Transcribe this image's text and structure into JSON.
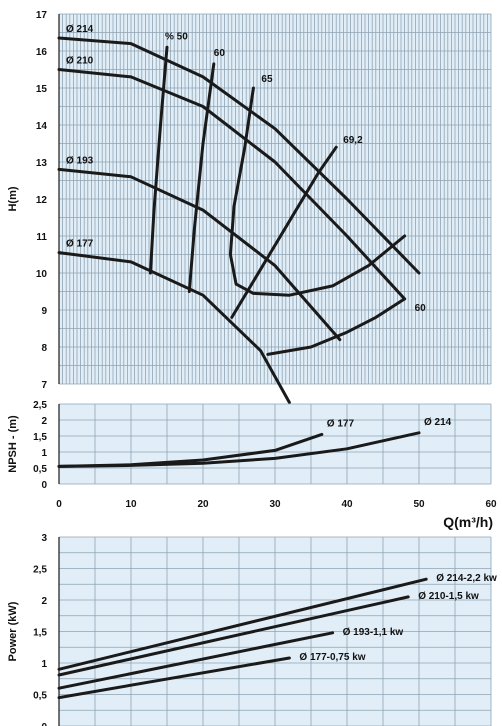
{
  "chart_data": [
    {
      "type": "line",
      "name": "head",
      "xlim": [
        0,
        60
      ],
      "ylim": [
        7,
        17
      ],
      "ylabel": "H(m)",
      "xlabel": "",
      "y_ticks": [
        "7",
        "8",
        "9",
        "10",
        "11",
        "12",
        "13",
        "14",
        "15",
        "16",
        "17"
      ],
      "grid": true,
      "series": [
        {
          "name": "Ø 214",
          "x": [
            0,
            10,
            20,
            30,
            40,
            50
          ],
          "y": [
            16.35,
            16.2,
            15.3,
            13.9,
            12.0,
            10.0
          ]
        },
        {
          "name": "Ø 210",
          "x": [
            0,
            10,
            20,
            30,
            40,
            48
          ],
          "y": [
            15.5,
            15.3,
            14.5,
            13.0,
            11.0,
            9.3
          ]
        },
        {
          "name": "Ø 193",
          "x": [
            0,
            10,
            20,
            30,
            39
          ],
          "y": [
            12.8,
            12.6,
            11.7,
            10.2,
            8.2
          ]
        },
        {
          "name": "Ø 177",
          "x": [
            0,
            10,
            20,
            28,
            32
          ],
          "y": [
            10.55,
            10.3,
            9.4,
            7.9,
            6.5
          ]
        }
      ],
      "efficiency_curves": [
        {
          "label": "% 50",
          "x": [
            15,
            14.1,
            13.2,
            12.7
          ],
          "y": [
            16.1,
            14.0,
            11.7,
            10.0
          ]
        },
        {
          "label": "60",
          "x": [
            21.5,
            20.0,
            18.8,
            18.1
          ],
          "y": [
            15.65,
            13.5,
            11.2,
            9.5
          ]
        },
        {
          "label": "65",
          "x": [
            27,
            25.8,
            24.3,
            23.8,
            24.6,
            27.0,
            32.0,
            38.0,
            43.0,
            48.0
          ],
          "y": [
            15.0,
            13.4,
            11.8,
            10.5,
            9.7,
            9.45,
            9.4,
            9.65,
            10.2,
            11.0
          ]
        },
        {
          "label": "69,2",
          "x": [
            24,
            28,
            32,
            36,
            38.5
          ],
          "y": [
            8.8,
            10.1,
            11.4,
            12.7,
            13.4
          ]
        },
        {
          "label": "60",
          "x": [
            29,
            35,
            40,
            44,
            48
          ],
          "y": [
            7.8,
            8.0,
            8.4,
            8.8,
            9.3
          ]
        }
      ]
    },
    {
      "type": "line",
      "name": "npsh",
      "xlim": [
        0,
        60
      ],
      "ylim": [
        0,
        2.5
      ],
      "ylabel": "NPSH - (m)",
      "xlabel": "Q(m³/h)",
      "x_ticks": [
        "0",
        "10",
        "20",
        "30",
        "40",
        "50",
        "60"
      ],
      "y_ticks": [
        "0",
        "0,5",
        "1",
        "1,5",
        "2",
        "2,5"
      ],
      "series": [
        {
          "name": "Ø 177",
          "x": [
            0,
            10,
            20,
            30,
            36.5
          ],
          "y": [
            0.55,
            0.6,
            0.75,
            1.05,
            1.55
          ]
        },
        {
          "name": "Ø 214",
          "x": [
            0,
            10,
            20,
            30,
            40,
            50
          ],
          "y": [
            0.55,
            0.58,
            0.65,
            0.8,
            1.1,
            1.6
          ]
        }
      ]
    },
    {
      "type": "line",
      "name": "power",
      "xlim": [
        0,
        60
      ],
      "ylim": [
        0,
        3
      ],
      "ylabel": "Power (kW)",
      "y_ticks": [
        "0",
        "0,5",
        "1",
        "1,5",
        "2",
        "2,5",
        "3"
      ],
      "series": [
        {
          "name": "Ø 214-2,2 kw",
          "x": [
            0,
            51
          ],
          "y": [
            0.9,
            2.33
          ]
        },
        {
          "name": "Ø 210-1,5 kw",
          "x": [
            0,
            48.5
          ],
          "y": [
            0.81,
            2.05
          ]
        },
        {
          "name": "Ø 193-1,1 kw",
          "x": [
            0,
            38
          ],
          "y": [
            0.6,
            1.48
          ]
        },
        {
          "name": "Ø 177-0,75 kw",
          "x": [
            0,
            32
          ],
          "y": [
            0.45,
            1.08
          ]
        }
      ]
    }
  ]
}
